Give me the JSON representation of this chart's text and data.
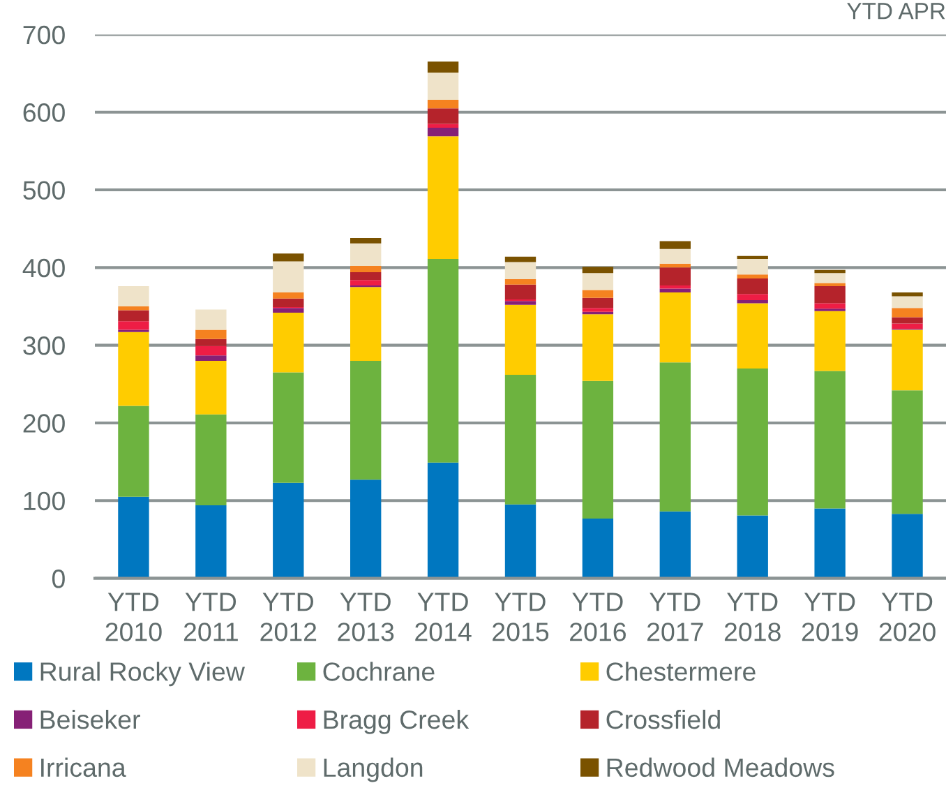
{
  "chart_data": {
    "type": "bar",
    "title": "YTD APR",
    "categories": [
      "YTD\n2010",
      "YTD\n2011",
      "YTD\n2012",
      "YTD\n2013",
      "YTD\n2014",
      "YTD\n2015",
      "YTD\n2016",
      "YTD\n2017",
      "YTD\n2018",
      "YTD\n2019",
      "YTD\n2020"
    ],
    "series": [
      {
        "name": "Rural Rocky View",
        "color": "#0077c0",
        "values": [
          105,
          94,
          123,
          127,
          149,
          95,
          77,
          86,
          81,
          90,
          83
        ]
      },
      {
        "name": "Cochrane",
        "color": "#6db33f",
        "values": [
          117,
          117,
          142,
          153,
          262,
          167,
          177,
          192,
          189,
          177,
          159
        ]
      },
      {
        "name": "Chestermere",
        "color": "#ffcc00",
        "values": [
          95,
          69,
          77,
          95,
          158,
          90,
          86,
          90,
          84,
          77,
          78
        ]
      },
      {
        "name": "Beiseker",
        "color": "#862076",
        "values": [
          3,
          7,
          6,
          2,
          11,
          5,
          3,
          5,
          4,
          3,
          1
        ]
      },
      {
        "name": "Bragg Creek",
        "color": "#ee1d45",
        "values": [
          11,
          12,
          1,
          7,
          5,
          2,
          5,
          4,
          8,
          7,
          7
        ]
      },
      {
        "name": "Crossfield",
        "color": "#b5232b",
        "values": [
          14,
          9,
          11,
          10,
          20,
          19,
          13,
          23,
          20,
          22,
          8
        ]
      },
      {
        "name": "Irricana",
        "color": "#f58220",
        "values": [
          5,
          12,
          8,
          8,
          11,
          7,
          10,
          5,
          5,
          4,
          12
        ]
      },
      {
        "name": "Langdon",
        "color": "#efe3c9",
        "values": [
          26,
          26,
          40,
          29,
          35,
          22,
          22,
          19,
          20,
          13,
          15
        ]
      },
      {
        "name": "Redwood Meadows",
        "color": "#7a5200",
        "values": [
          null,
          null,
          10,
          7,
          14,
          7,
          8,
          10,
          4,
          4,
          5
        ]
      }
    ],
    "stacked": true,
    "ylim": [
      0,
      700
    ],
    "yticks": [
      0,
      100,
      200,
      300,
      400,
      500,
      600,
      700
    ],
    "grid": "y",
    "legend": "bottom"
  }
}
